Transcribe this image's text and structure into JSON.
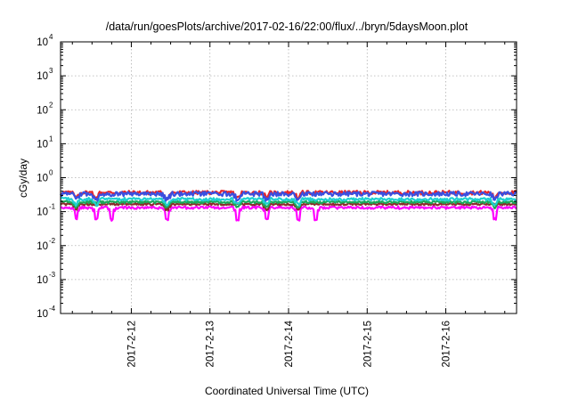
{
  "chart_data": {
    "type": "line",
    "title": "/data/run/goesPlots/archive/2017-02-16/22:00/flux/../bryn/5daysMoon.plot",
    "xlabel": "Coordinated Universal Time (UTC)",
    "ylabel": "cGy/day",
    "yscale": "log",
    "ylim": [
      0.0001,
      10000
    ],
    "xlim": [
      11.1,
      16.9
    ],
    "grid": true,
    "y_ticks": [
      {
        "value": 0.0001,
        "base": "10",
        "exp": "-4"
      },
      {
        "value": 0.001,
        "base": "10",
        "exp": "-3"
      },
      {
        "value": 0.01,
        "base": "10",
        "exp": "-2"
      },
      {
        "value": 0.1,
        "base": "10",
        "exp": "-1"
      },
      {
        "value": 1,
        "base": "10",
        "exp": "0"
      },
      {
        "value": 10,
        "base": "10",
        "exp": "1"
      },
      {
        "value": 100,
        "base": "10",
        "exp": "2"
      },
      {
        "value": 1000,
        "base": "10",
        "exp": "3"
      },
      {
        "value": 10000,
        "base": "10",
        "exp": "4"
      }
    ],
    "x_ticks": [
      {
        "value": 12,
        "label": "2017-2-12"
      },
      {
        "value": 13,
        "label": "2017-2-13"
      },
      {
        "value": 14,
        "label": "2017-2-14"
      },
      {
        "value": 15,
        "label": "2017-2-15"
      },
      {
        "value": 16,
        "label": "2017-2-16"
      }
    ],
    "series": [
      {
        "color": "#e8262a",
        "base": 0.36,
        "noise": 0.13,
        "dips": [
          11.3,
          11.55,
          12.45,
          13.35,
          13.72,
          14.12,
          16.62
        ]
      },
      {
        "color": "#3a4fe0",
        "base": 0.33,
        "noise": 0.15,
        "dips": [
          11.3,
          11.55,
          12.45,
          13.35,
          13.72,
          14.12,
          16.62
        ]
      },
      {
        "color": "#1fd0d0",
        "base": 0.23,
        "noise": 0.1,
        "dips": [
          11.3,
          11.55,
          12.45,
          13.35,
          13.72,
          14.12,
          16.62
        ]
      },
      {
        "color": "#1aa85a",
        "base": 0.19,
        "noise": 0.08,
        "dips": [
          11.3,
          12.45,
          13.35,
          13.72,
          14.12,
          16.62
        ]
      },
      {
        "color": "#8b2b2b",
        "base": 0.165,
        "noise": 0.07,
        "dips": [
          11.3,
          12.45,
          13.72,
          14.12
        ]
      },
      {
        "color": "#ff00ff",
        "base": 0.13,
        "noise": 0.09,
        "dips": [
          11.3,
          11.55,
          11.75,
          12.45,
          13.35,
          13.72,
          14.12,
          14.35,
          16.62
        ]
      }
    ]
  }
}
